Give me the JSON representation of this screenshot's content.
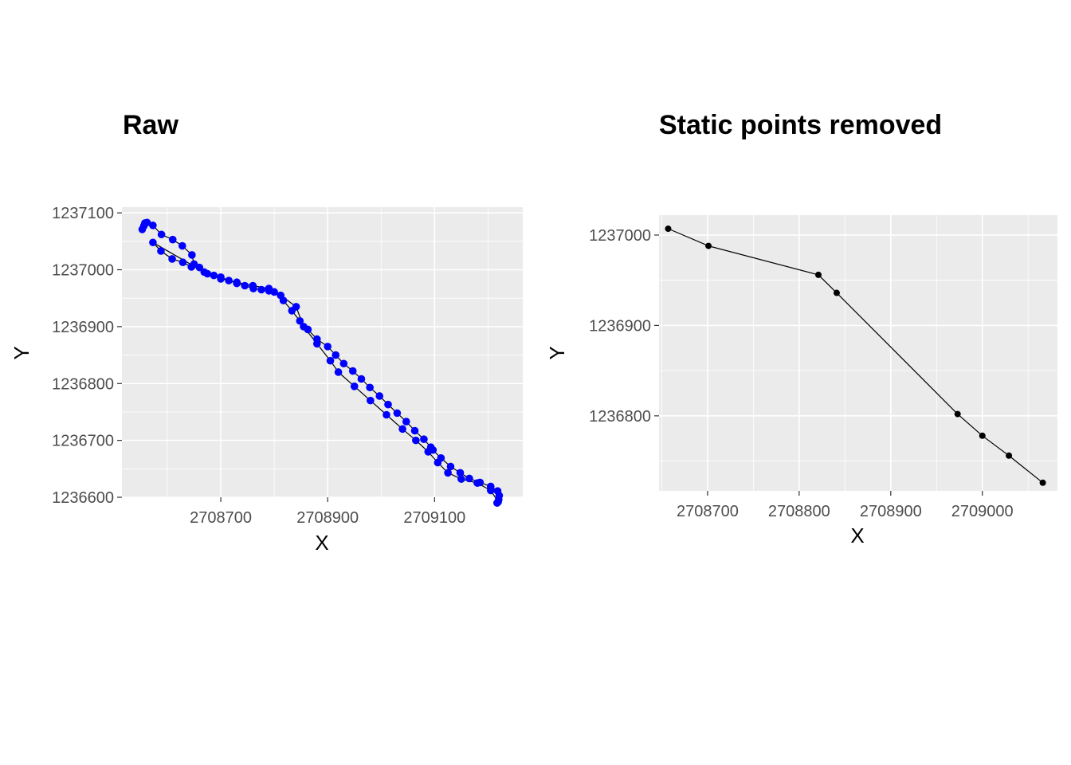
{
  "chart_data": [
    {
      "type": "scatter",
      "title": "Raw",
      "xlabel": "X",
      "ylabel": "Y",
      "xlim": [
        2708515,
        2709265
      ],
      "ylim": [
        2365.0,
        1237110
      ],
      "xticks": [
        2708700,
        2708900,
        2709100
      ],
      "xtick_labels": [
        "2708700",
        "2708900",
        "2709100"
      ],
      "yticks": [
        1236600,
        1236700,
        1236800,
        1236900,
        1237000,
        1237100
      ],
      "ytick_labels": [
        "1236600",
        "1236700",
        "1236800",
        "1236900",
        "1237000",
        "1237100"
      ],
      "grid": true,
      "line": true,
      "point_color": "#0000ff",
      "line_color": "#000000",
      "series": [
        {
          "x": [
            2708553,
            2708556,
            2708558,
            2708562,
            2708573,
            2708589,
            2708610,
            2708628,
            2708646,
            2708650,
            2708645,
            2708629,
            2708609,
            2708588,
            2708573,
            2708669,
            2708687,
            2708700,
            2708715,
            2708730,
            2708745,
            2708761,
            2708776,
            2708790,
            2708800,
            2708817,
            2708833,
            2708848,
            2708863,
            2708880,
            2708900,
            2708915,
            2708930,
            2708947,
            2708963,
            2708979,
            2708997,
            2709013,
            2709030,
            2709047,
            2709063,
            2709080,
            2709093,
            2709097,
            2709112,
            2709130,
            2709148,
            2709165,
            2709185,
            2709205,
            2709218,
            2709221,
            2709220,
            2709217,
            2709219,
            2709205,
            2709180,
            2709150,
            2709125,
            2709106,
            2709088,
            2709065,
            2709040,
            2709010,
            2708980,
            2708950,
            2708920,
            2708905,
            2708880,
            2708855,
            2708841,
            2708812,
            2708790,
            2708760,
            2708730,
            2708700,
            2708675,
            2708660
          ],
          "y": [
            1237071,
            1237077,
            1237082,
            1237083,
            1237078,
            1237062,
            1237053,
            1237042,
            1237026,
            1237010,
            1237005,
            1237013,
            1237019,
            1237033,
            1237048,
            1236996,
            1236990,
            1236987,
            1236981,
            1236976,
            1236972,
            1236967,
            1236965,
            1236963,
            1236961,
            1236946,
            1236928,
            1236910,
            1236895,
            1236878,
            1236865,
            1236850,
            1236835,
            1236822,
            1236808,
            1236793,
            1236778,
            1236763,
            1236748,
            1236733,
            1236717,
            1236702,
            1236688,
            1236683,
            1236669,
            1236654,
            1236643,
            1236633,
            1236626,
            1236619,
            1236611,
            1236603,
            1236596,
            1236590,
            1236592,
            1236612,
            1236625,
            1236632,
            1236643,
            1236661,
            1236680,
            1236700,
            1236720,
            1236745,
            1236770,
            1236795,
            1236820,
            1236840,
            1236870,
            1236900,
            1236935,
            1236955,
            1236967,
            1236972,
            1236978,
            1236984,
            1236993,
            1237004
          ]
        }
      ]
    },
    {
      "type": "line",
      "title": "Static points removed",
      "xlabel": "X",
      "ylabel": "Y",
      "xlim": [
        2708647,
        2709082
      ],
      "ylim": [
        1236717,
        1237022
      ],
      "xticks": [
        2708700,
        2708800,
        2708900,
        2709000
      ],
      "xtick_labels": [
        "2708700",
        "2708800",
        "2708900",
        "2709000"
      ],
      "yticks": [
        1236800,
        1236900,
        1237000
      ],
      "ytick_labels": [
        "1236800",
        "1236900",
        "1237000"
      ],
      "grid": true,
      "line": true,
      "point_color": "#000000",
      "line_color": "#000000",
      "series": [
        {
          "x": [
            2708657,
            2708701,
            2708821,
            2708841,
            2708973,
            2709000,
            2709029,
            2709066
          ],
          "y": [
            1237007,
            1236988,
            1236956,
            1236936,
            1236802,
            1236778,
            1236756,
            1236726
          ]
        }
      ]
    }
  ]
}
